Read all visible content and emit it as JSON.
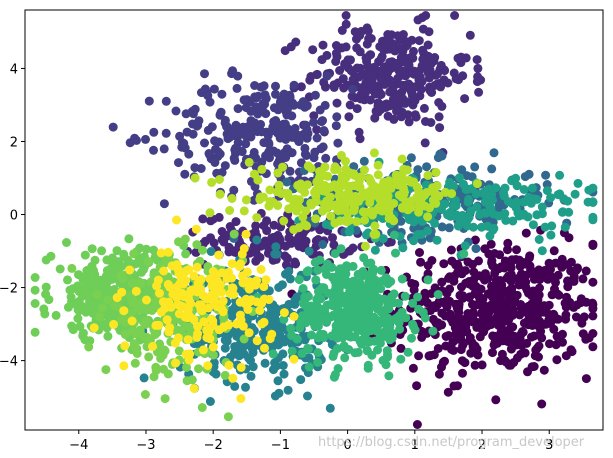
{
  "chart_data": {
    "type": "scatter",
    "title": "",
    "xlabel": "",
    "ylabel": "",
    "xlim": [
      -4.8,
      3.8
    ],
    "ylim": [
      -5.9,
      5.6
    ],
    "xticks": [
      -4,
      -3,
      -2,
      -1,
      0,
      1,
      2,
      3
    ],
    "yticks": [
      -4,
      -2,
      0,
      2,
      4
    ],
    "x_tick_labels": [
      "−4",
      "−3",
      "−2",
      "−1",
      "0",
      "1",
      "2",
      "3"
    ],
    "y_tick_labels": [
      "−4",
      "−2",
      "0",
      "2",
      "4"
    ],
    "grid": false,
    "legend": "none",
    "marker_size": 9,
    "series": [
      {
        "color": "#440154",
        "center": [
          2.2,
          -2.6
        ],
        "spread": [
          0.75,
          0.9
        ],
        "count": 520
      },
      {
        "color": "#482878",
        "center": [
          -1.0,
          -0.7
        ],
        "spread": [
          0.55,
          0.35
        ],
        "count": 150
      },
      {
        "color": "#472f7d",
        "center": [
          0.6,
          3.8
        ],
        "spread": [
          0.6,
          0.7
        ],
        "count": 300
      },
      {
        "color": "#433e85",
        "center": [
          -1.3,
          2.2
        ],
        "spread": [
          0.7,
          0.8
        ],
        "count": 260
      },
      {
        "color": "#31688e",
        "center": [
          1.2,
          0.4
        ],
        "spread": [
          0.9,
          0.5
        ],
        "count": 230
      },
      {
        "color": "#26828e",
        "center": [
          -1.4,
          -3.0
        ],
        "spread": [
          0.55,
          0.8
        ],
        "count": 330
      },
      {
        "color": "#1f9e89",
        "center": [
          1.6,
          0.2
        ],
        "spread": [
          1.0,
          0.45
        ],
        "count": 230
      },
      {
        "color": "#35b779",
        "center": [
          0.1,
          -2.6
        ],
        "spread": [
          0.45,
          0.7
        ],
        "count": 380
      },
      {
        "color": "#6ece58",
        "center": [
          -3.4,
          -2.2
        ],
        "spread": [
          0.5,
          0.6
        ],
        "count": 340
      },
      {
        "color": "#7ad151",
        "center": [
          -2.6,
          -2.8
        ],
        "spread": [
          0.5,
          0.8
        ],
        "count": 220
      },
      {
        "color": "#b5de2b",
        "center": [
          0.1,
          0.5
        ],
        "spread": [
          0.8,
          0.4
        ],
        "count": 250
      },
      {
        "color": "#fde725",
        "center": [
          -2.1,
          -2.4
        ],
        "spread": [
          0.5,
          0.75
        ],
        "count": 180
      }
    ]
  },
  "watermark": "https://blog.csdn.net/program_developer"
}
